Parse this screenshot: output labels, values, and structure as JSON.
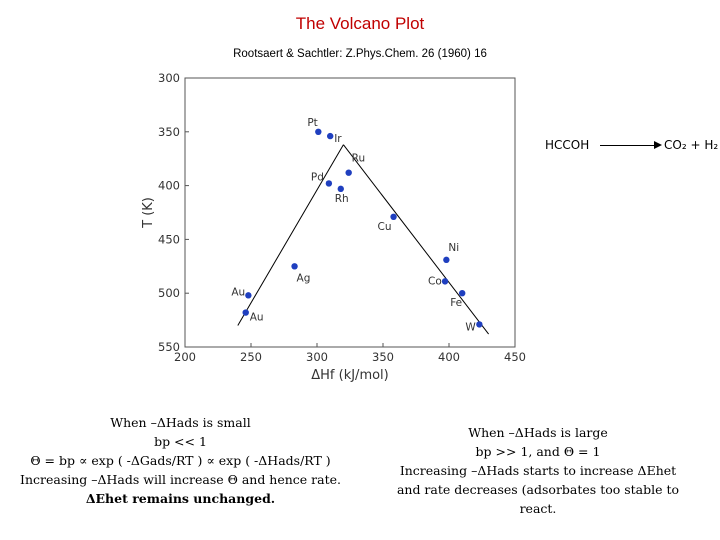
{
  "slide": {
    "title": "The Volcano Plot",
    "citation": "Rootsaert & Sachtler: Z.Phys.Chem. 26 (1960) 16"
  },
  "reaction": {
    "reactant": "HCCOH",
    "product_text": "CO₂ + H₂"
  },
  "notes": {
    "left": [
      "When –ΔHads is small",
      "bp << 1",
      "Θ = bp ∝ exp ( -ΔGads/RT ) ∝ exp ( -ΔHads/RT )",
      "Increasing –ΔHads will increase Θ and hence rate.",
      "ΔEhet remains unchanged."
    ],
    "right": [
      "When –ΔHads is large",
      "bp >> 1, and Θ = 1",
      "Increasing –ΔHads starts to increase ΔEhet",
      "and rate decreases (adsorbates too stable to react."
    ]
  },
  "colors": {
    "title": "#c00000",
    "point": "#1f3fbf",
    "axis": "#555555",
    "line": "#000000"
  },
  "chart_data": {
    "type": "scatter",
    "xlabel": "ΔHf (kJ/mol)",
    "ylabel": "T (K)",
    "xlim": [
      200,
      450
    ],
    "ylim": [
      300,
      550
    ],
    "y_inverted": true,
    "xticks": [
      200,
      250,
      300,
      350,
      400,
      450
    ],
    "yticks": [
      300,
      350,
      400,
      450,
      500,
      550
    ],
    "grid": false,
    "points": [
      {
        "label": "Pt",
        "x": 301,
        "y": 350
      },
      {
        "label": "Ir",
        "x": 310,
        "y": 354
      },
      {
        "label": "Ru",
        "x": 324,
        "y": 388
      },
      {
        "label": "Pd",
        "x": 309,
        "y": 398
      },
      {
        "label": "Rh",
        "x": 318,
        "y": 403
      },
      {
        "label": "Cu",
        "x": 358,
        "y": 429
      },
      {
        "label": "Ni",
        "x": 398,
        "y": 469
      },
      {
        "label": "Ag",
        "x": 283,
        "y": 475
      },
      {
        "label": "Co",
        "x": 397,
        "y": 489
      },
      {
        "label": "Fe",
        "x": 410,
        "y": 500
      },
      {
        "label": "Au",
        "x": 248,
        "y": 502
      },
      {
        "label": "Au",
        "x": 246,
        "y": 518
      },
      {
        "label": "W",
        "x": 423,
        "y": 529
      }
    ],
    "trend_lines": [
      {
        "x": [
          240,
          320
        ],
        "y": [
          530,
          362
        ]
      },
      {
        "x": [
          320,
          430
        ],
        "y": [
          362,
          538
        ]
      }
    ]
  }
}
